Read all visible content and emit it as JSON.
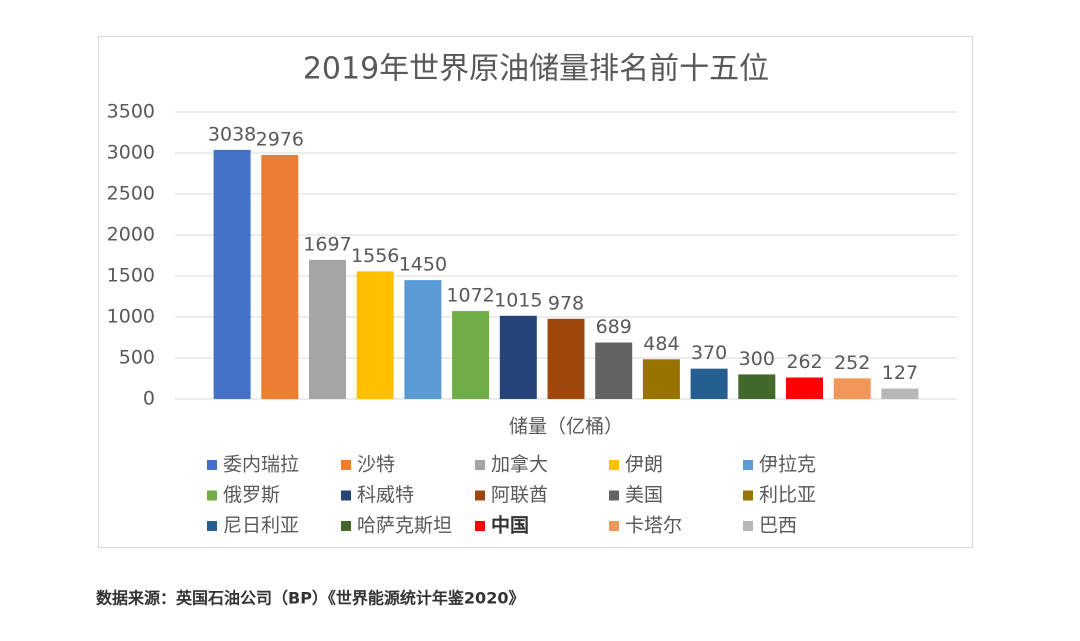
{
  "chart_data": {
    "type": "bar",
    "title": "2019年世界原油储量排名前十五位",
    "categories": [
      "储量（亿桶）"
    ],
    "series": [
      {
        "name": "委内瑞拉",
        "color": "#4472c4",
        "values": [
          3038
        ]
      },
      {
        "name": "沙特",
        "color": "#ed7d31",
        "values": [
          2976
        ]
      },
      {
        "name": "加拿大",
        "color": "#a5a5a5",
        "values": [
          1697
        ]
      },
      {
        "name": "伊朗",
        "color": "#ffc000",
        "values": [
          1556
        ]
      },
      {
        "name": "伊拉克",
        "color": "#5b9bd5",
        "values": [
          1450
        ]
      },
      {
        "name": "俄罗斯",
        "color": "#70ad47",
        "values": [
          1072
        ]
      },
      {
        "name": "科威特",
        "color": "#264478",
        "values": [
          1015
        ]
      },
      {
        "name": "阿联酋",
        "color": "#9e480e",
        "values": [
          978
        ]
      },
      {
        "name": "美国",
        "color": "#636363",
        "values": [
          689
        ]
      },
      {
        "name": "利比亚",
        "color": "#997300",
        "values": [
          484
        ]
      },
      {
        "name": "尼日利亚",
        "color": "#255e91",
        "values": [
          370
        ]
      },
      {
        "name": "哈萨克斯坦",
        "color": "#43682b",
        "values": [
          300
        ]
      },
      {
        "name": "中国",
        "color": "#ff0000",
        "values": [
          262
        ],
        "legend_bold": true
      },
      {
        "name": "卡塔尔",
        "color": "#f1975a",
        "values": [
          252
        ]
      },
      {
        "name": "巴西",
        "color": "#b7b7b7",
        "values": [
          127
        ]
      }
    ],
    "ylim": [
      0,
      3500
    ],
    "yticks": [
      0,
      500,
      1000,
      1500,
      2000,
      2500,
      3000,
      3500
    ],
    "grid": true,
    "legend": "bottom",
    "source": "数据来源：英国石油公司（BP）《世界能源统计年鉴2020》"
  }
}
